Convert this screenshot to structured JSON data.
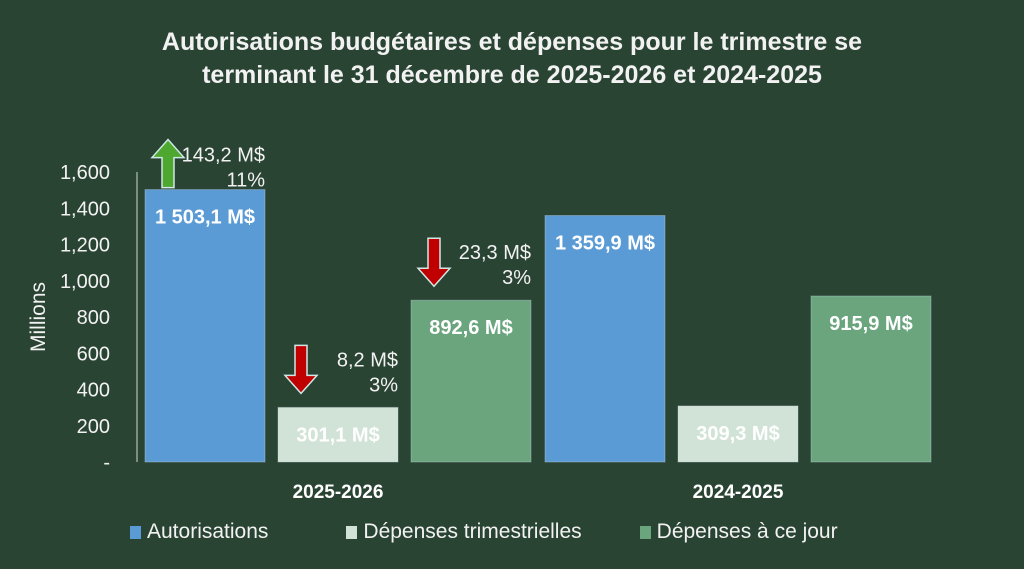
{
  "chart_data": {
    "type": "bar",
    "title_lines": [
      "Autorisations budgétaires et dépenses pour le trimestre se",
      "terminant le 31 décembre de 2025-2026 et 2024-2025"
    ],
    "ylabel": "Millions",
    "ylim": [
      0,
      1600
    ],
    "yticks": [
      0,
      200,
      400,
      600,
      800,
      1000,
      1200,
      1400,
      1600
    ],
    "ytick_labels": [
      "-",
      "200",
      "400",
      "600",
      "800",
      "1,000",
      "1,200",
      "1,400",
      "1,600"
    ],
    "categories": [
      "2025-2026",
      "2024-2025"
    ],
    "grid": false,
    "legend_position": "bottom",
    "series": [
      {
        "name": "Autorisations",
        "color": "#5b9bd5",
        "values": [
          1503.1,
          1359.9
        ],
        "labels": [
          "1 503,1 M$",
          "1 359,9 M$"
        ]
      },
      {
        "name": "Dépenses trimestrielles",
        "color": "#d1e3d6",
        "values": [
          301.1,
          309.3
        ],
        "labels": [
          "301,1 M$",
          "309,3 M$"
        ]
      },
      {
        "name": "Dépenses à ce jour",
        "color": "#6aa57e",
        "values": [
          892.6,
          915.9
        ],
        "labels": [
          "892,6 M$",
          "915,9 M$"
        ]
      }
    ],
    "annotations": [
      {
        "series": 0,
        "category": 0,
        "direction": "up",
        "arrow_color": "#4ea72e",
        "amount": "143,2 M$",
        "percent": "11%"
      },
      {
        "series": 1,
        "category": 0,
        "direction": "down",
        "arrow_color": "#c00000",
        "amount": "8,2 M$",
        "percent": "3%"
      },
      {
        "series": 2,
        "category": 0,
        "direction": "down",
        "arrow_color": "#c00000",
        "amount": "23,3 M$",
        "percent": "3%"
      }
    ]
  }
}
